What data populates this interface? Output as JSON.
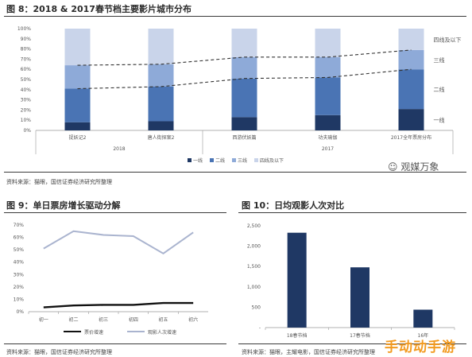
{
  "figure8": {
    "title": "图 8：2018 & 2017春节档主要影片城市分布",
    "source": "资料来源：猫眼，国信证券经济研究所整理"
  },
  "figure9": {
    "title": "图 9：单日票房增长驱动分解",
    "source": "资料来源：猫眼，国信证券经济研究所整理"
  },
  "figure10": {
    "title": "图 10：日均观影人次对比",
    "source": "资料来源：猫眼，主耀电影，国信证券经济研究所整理"
  },
  "watermark": {
    "brand": "观媒万象",
    "site": "手动动手游"
  },
  "chart_data": [
    {
      "type": "bar",
      "stacked": true,
      "categories": [
        "捉妖记2",
        "唐人街探案2",
        "西游伏妖篇",
        "功夫瑜伽",
        "2017全年票房分布"
      ],
      "groups": [
        {
          "label": "2018",
          "categories": [
            "捉妖记2",
            "唐人街探案2"
          ]
        },
        {
          "label": "2017",
          "categories": [
            "西游伏妖篇",
            "功夫瑜伽",
            "2017全年票房分布"
          ]
        }
      ],
      "series": [
        {
          "name": "一线",
          "color": "#1f3864",
          "values": [
            8,
            9,
            13,
            15,
            21
          ]
        },
        {
          "name": "二线",
          "color": "#4a74b4",
          "values": [
            33,
            34,
            38,
            37,
            39
          ]
        },
        {
          "name": "三线",
          "color": "#8eaad8",
          "values": [
            23,
            22,
            21,
            20,
            19
          ]
        },
        {
          "name": "四线及以下",
          "color": "#c9d4ea",
          "values": [
            36,
            35,
            28,
            28,
            21
          ]
        }
      ],
      "trend_lines": [
        {
          "values": [
            64,
            65,
            72,
            72,
            79
          ],
          "style": "dashed"
        },
        {
          "values": [
            41,
            43,
            51,
            52,
            60
          ],
          "style": "dashed"
        }
      ],
      "right_labels": [
        "四线及以下",
        "三线",
        "二线",
        "一线"
      ],
      "ylim": [
        0,
        100
      ],
      "yticks": [
        "0%",
        "10%",
        "20%",
        "30%",
        "40%",
        "50%",
        "60%",
        "70%",
        "80%",
        "90%",
        "100%"
      ],
      "legend_position": "bottom"
    },
    {
      "type": "line",
      "categories": [
        "初一",
        "初二",
        "初三",
        "初四",
        "初五",
        "初六"
      ],
      "series": [
        {
          "name": "票价增速",
          "color": "#111111",
          "values": [
            3.5,
            5,
            5.5,
            5.5,
            7,
            7
          ]
        },
        {
          "name": "观影人次增速",
          "color": "#aab4cf",
          "values": [
            51,
            65,
            62,
            61,
            47,
            64
          ]
        }
      ],
      "ylim": [
        0,
        70
      ],
      "yticks": [
        "0%",
        "10%",
        "20%",
        "30%",
        "40%",
        "50%",
        "60%",
        "70%"
      ],
      "legend_position": "bottom"
    },
    {
      "type": "bar",
      "categories": [
        "18春节档",
        "17春节档",
        "16年"
      ],
      "values": [
        2330,
        1480,
        440
      ],
      "color": "#1f3864",
      "ylim": [
        0,
        2500
      ],
      "yticks": [
        "-",
        "500",
        "1,000",
        "1,500",
        "2,000",
        "2,500"
      ]
    }
  ]
}
